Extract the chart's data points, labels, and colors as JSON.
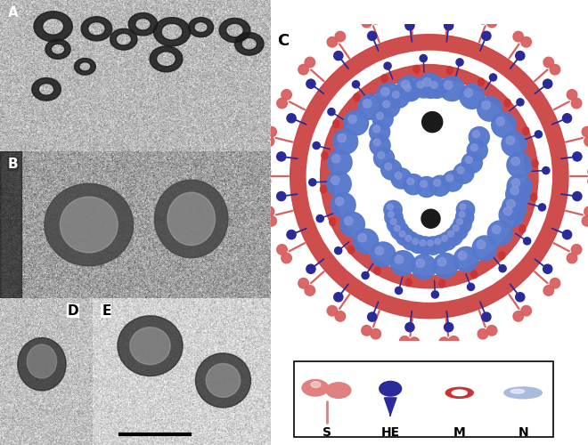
{
  "panel_labels": [
    "A",
    "B",
    "C",
    "D",
    "E"
  ],
  "spike_color": "#d96060",
  "spike_stalk": "#cc8888",
  "he_color": "#2a2a99",
  "envelope_color": "#cc4444",
  "nucleocapsid_color": "#5577cc",
  "nucleocapsid_light": "#8899dd",
  "legend_labels": [
    "S",
    "HE",
    "M",
    "N"
  ],
  "bg_color": "#ffffff",
  "em_gray_A": 0.72,
  "em_gray_B": 0.62,
  "em_gray_D": 0.75,
  "em_gray_E": 0.82,
  "m_color": "#cc3333",
  "n_color": "#aabbdd"
}
